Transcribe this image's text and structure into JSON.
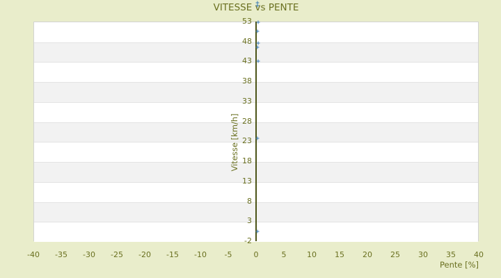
{
  "page": {
    "background": "#e9edcb"
  },
  "chart_data": {
    "type": "scatter",
    "title": "VITESSE vs PENTE",
    "xlabel": "Pente [%]",
    "ylabel": "Vitesse [km/h]",
    "xlim": [
      -40,
      40
    ],
    "ylim": [
      -2,
      53
    ],
    "x_ticks": [
      -40,
      -35,
      -30,
      -25,
      -20,
      -15,
      -10,
      -5,
      0,
      5,
      10,
      15,
      20,
      25,
      30,
      35,
      40
    ],
    "y_ticks": [
      53,
      48,
      43,
      38,
      33,
      28,
      23,
      18,
      13,
      8,
      3,
      -2
    ],
    "grid": "alternating-horizontal-bands",
    "legend_position": "none",
    "axis_cross_x": 0,
    "colors": {
      "page_bg": "#e9edcb",
      "band_light": "#ffffff",
      "band_dark": "#f2f2f2",
      "band_edge": "#e3e3e3",
      "plot_border": "#d2d2d2",
      "axis_line": "#4b5317",
      "text": "#6a7020",
      "marker": "#3b7cb5"
    },
    "series": [
      {
        "name": "Vitesse",
        "marker": "plus",
        "color": "#3b7cb5",
        "points": [
          {
            "x": 0.3,
            "y": 57.7
          },
          {
            "x": 0.3,
            "y": 57.0
          },
          {
            "x": 0.4,
            "y": 52.8
          },
          {
            "x": 0.3,
            "y": 50.6
          },
          {
            "x": 0.4,
            "y": 47.6
          },
          {
            "x": 0.3,
            "y": 46.6
          },
          {
            "x": 0.4,
            "y": 43.1
          },
          {
            "x": 0.3,
            "y": 23.8
          },
          {
            "x": 0.2,
            "y": 0.4
          }
        ]
      }
    ]
  }
}
